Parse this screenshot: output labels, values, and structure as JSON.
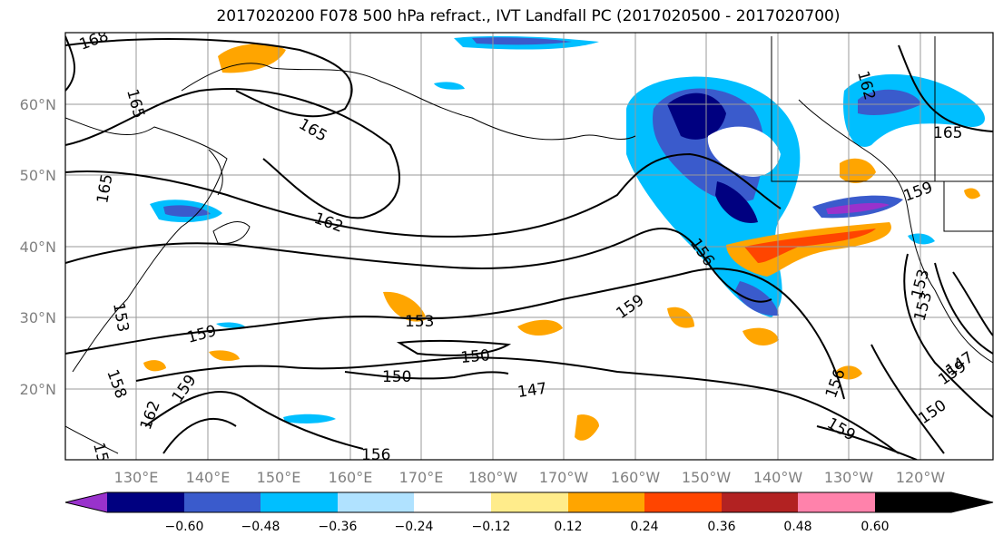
{
  "title": "2017020200 F078 500 hPa refract., IVT Landfall PC (2017020500 - 2017020700)",
  "map": {
    "lat_labels": [
      "60°N",
      "50°N",
      "40°N",
      "30°N",
      "20°N"
    ],
    "lon_labels": [
      "130°E",
      "140°E",
      "150°E",
      "160°E",
      "170°E",
      "180°W",
      "170°W",
      "160°W",
      "150°W",
      "140°W",
      "130°W",
      "120°W"
    ],
    "contour_labels": [
      "168",
      "165",
      "165",
      "162",
      "165",
      "162",
      "165",
      "159",
      "156",
      "153",
      "159",
      "159",
      "153",
      "150",
      "150",
      "147",
      "159",
      "153",
      "158",
      "159",
      "162",
      "15",
      "156",
      "156",
      "159",
      "150",
      "147",
      "153"
    ]
  },
  "colorbar": {
    "ticks": [
      "−0.60",
      "−0.48",
      "−0.36",
      "−0.24",
      "−0.12",
      "0.12",
      "0.24",
      "0.36",
      "0.48",
      "0.60"
    ],
    "colors": [
      "#9932cc",
      "#000080",
      "#3a5bcc",
      "#00bfff",
      "#b0e2ff",
      "#ffffff",
      "#ffec8b",
      "#ffa500",
      "#ff4500",
      "#b22222",
      "#ff82ab"
    ]
  }
}
